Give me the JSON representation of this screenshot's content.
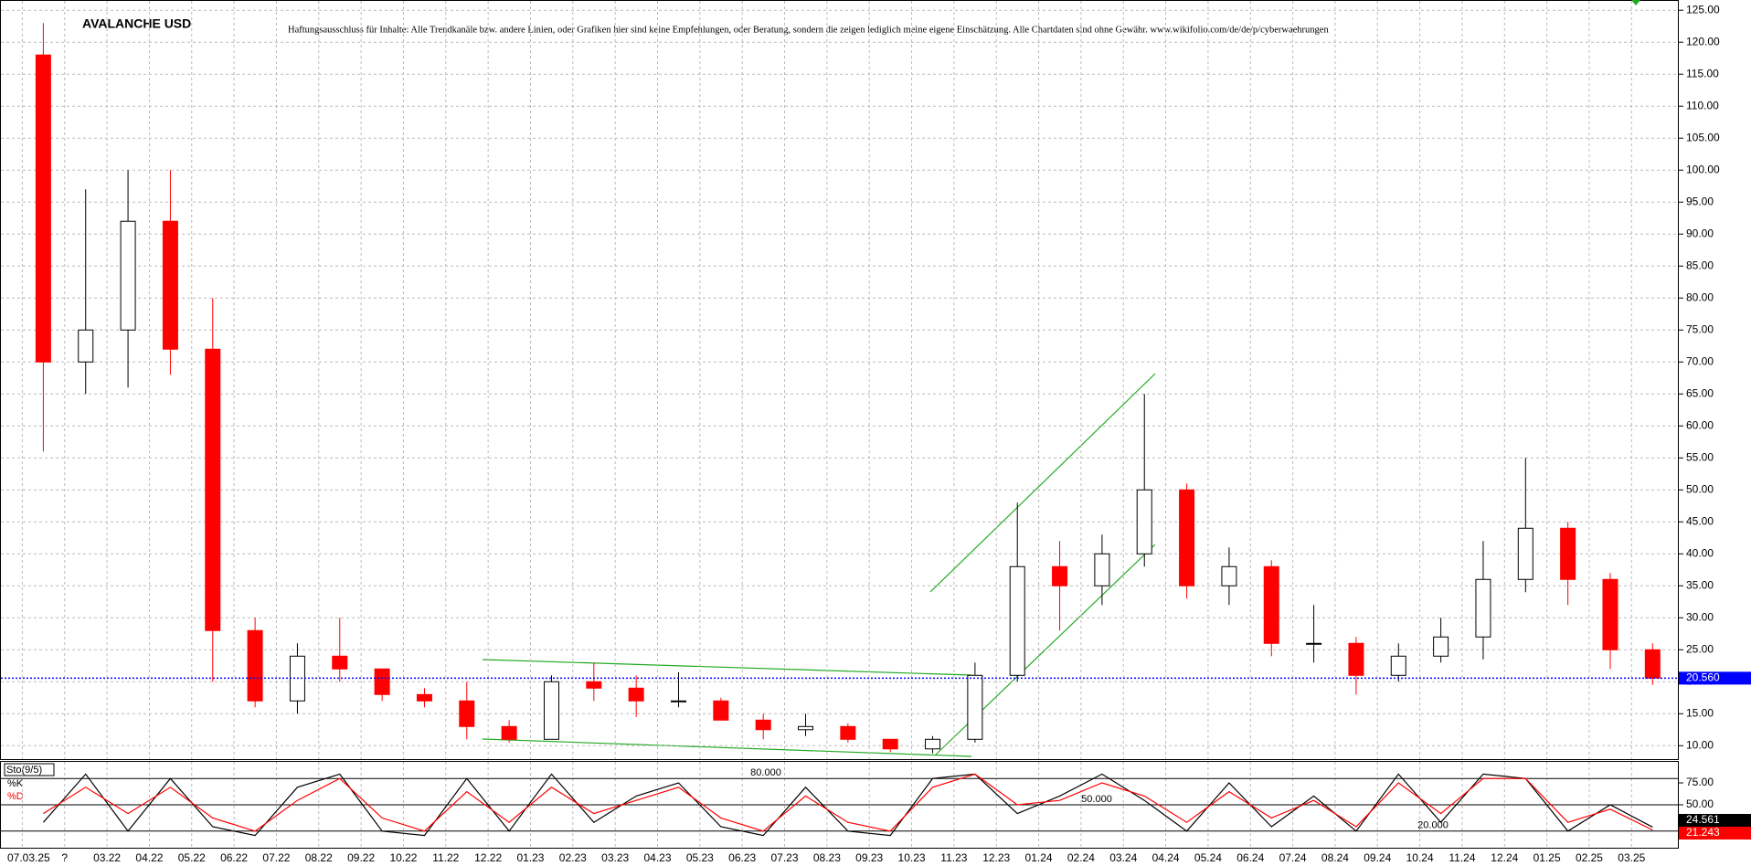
{
  "chart_data": [
    {
      "type": "candlestick",
      "title": "AVALANCHE USD",
      "subtitle": "Haftungsausschluss für Inhalte: Alle Trendkanäle bzw. andere Linien, oder Grafiken hier sind keine Empfehlungen, oder Beratung, sondern die zeigen lediglich meine eigene Einschätzung. Alle Chartdaten sind ohne Gewähr.  www.wikifolio.com/de/de/p/cyberwaehrungen",
      "categories": [
        "07.03.25",
        "?",
        "03.22",
        "04.22",
        "05.22",
        "06.22",
        "07.22",
        "08.22",
        "09.22",
        "10.22",
        "11.22",
        "12.22",
        "01.23",
        "02.23",
        "03.23",
        "04.23",
        "05.23",
        "06.23",
        "07.23",
        "08.23",
        "09.23",
        "10.23",
        "11.23",
        "12.23",
        "01.24",
        "02.24",
        "03.24",
        "04.24",
        "05.24",
        "06.24",
        "07.24",
        "08.24",
        "09.24",
        "10.24",
        "11.24",
        "12.24",
        "01.25",
        "02.25",
        "03.25"
      ],
      "ohlc": [
        [
          118,
          123,
          56,
          70
        ],
        [
          70,
          97,
          65,
          75
        ],
        [
          75,
          100,
          66,
          92
        ],
        [
          92,
          100,
          68,
          72
        ],
        [
          72,
          80,
          20,
          28
        ],
        [
          28,
          30,
          16,
          17
        ],
        [
          17,
          26,
          15,
          24
        ],
        [
          24,
          30,
          20,
          22
        ],
        [
          22,
          22,
          17,
          18
        ],
        [
          18,
          19,
          16,
          17
        ],
        [
          17,
          20,
          11,
          13
        ],
        [
          13,
          14,
          10.5,
          11
        ],
        [
          11,
          21,
          11,
          20
        ],
        [
          20,
          23,
          17,
          19
        ],
        [
          19,
          21,
          14.5,
          17
        ],
        [
          17,
          21.5,
          16,
          17
        ],
        [
          17,
          17.5,
          14,
          14
        ],
        [
          14,
          15,
          11,
          12.5
        ],
        [
          12.5,
          15,
          11.5,
          13
        ],
        [
          13,
          13.5,
          10.5,
          11
        ],
        [
          11,
          11,
          9,
          9.5
        ],
        [
          9.5,
          11.5,
          8.8,
          11
        ],
        [
          11,
          23,
          10.5,
          21
        ],
        [
          21,
          48,
          20,
          38
        ],
        [
          38,
          42,
          28,
          35
        ],
        [
          35,
          43,
          32,
          40
        ],
        [
          40,
          65,
          38,
          50
        ],
        [
          50,
          51,
          33,
          35
        ],
        [
          35,
          41,
          32,
          38
        ],
        [
          38,
          39,
          24,
          26
        ],
        [
          26,
          32,
          23,
          26
        ],
        [
          26,
          27,
          18,
          21
        ],
        [
          21,
          26,
          20,
          24
        ],
        [
          24,
          30,
          23,
          27
        ],
        [
          27,
          42,
          23.5,
          36
        ],
        [
          36,
          55,
          34,
          44
        ],
        [
          44,
          45,
          32,
          36
        ],
        [
          36,
          37,
          22,
          25
        ],
        [
          25,
          26,
          19.5,
          20.56
        ]
      ],
      "up_color": "#000000",
      "down_color": "#ff0000",
      "last": {
        "value": 20.56,
        "label": "20.560",
        "color": "#0000ff"
      },
      "ylim": [
        7.9,
        126.6
      ],
      "yticks": [
        {
          "value": 10,
          "label": "10.00"
        },
        {
          "value": 15,
          "label": "15.00"
        },
        {
          "value": 20,
          "label": "20.00"
        },
        {
          "value": 25,
          "label": "25.00"
        },
        {
          "value": 30,
          "label": "30.00"
        },
        {
          "value": 35,
          "label": "35.00"
        },
        {
          "value": 40,
          "label": "40.00"
        },
        {
          "value": 45,
          "label": "45.00"
        },
        {
          "value": 50,
          "label": "50.00"
        },
        {
          "value": 55,
          "label": "55.00"
        },
        {
          "value": 60,
          "label": "60.00"
        },
        {
          "value": 65,
          "label": "65.00"
        },
        {
          "value": 70,
          "label": "70.00"
        },
        {
          "value": 75,
          "label": "75.00"
        },
        {
          "value": 80,
          "label": "80.00"
        },
        {
          "value": 85,
          "label": "85.00"
        },
        {
          "value": 90,
          "label": "90.00"
        },
        {
          "value": 95,
          "label": "95.00"
        },
        {
          "value": 100,
          "label": "100.00"
        },
        {
          "value": 105,
          "label": "105.00"
        },
        {
          "value": 110,
          "label": "110.00"
        },
        {
          "value": 115,
          "label": "115.00"
        },
        {
          "value": 120,
          "label": "120.00"
        },
        {
          "value": 125,
          "label": "125.00"
        }
      ],
      "grid": true
    },
    {
      "type": "line",
      "title": "Sto(9/5)",
      "series": [
        {
          "name": "%K",
          "color": "#000000",
          "last_label": "24.561",
          "values": [
            30,
            85,
            20,
            80,
            25,
            15,
            70,
            85,
            20,
            15,
            80,
            20,
            85,
            30,
            60,
            75,
            25,
            15,
            70,
            20,
            15,
            80,
            85,
            40,
            60,
            85,
            55,
            20,
            75,
            25,
            60,
            20,
            85,
            30,
            85,
            80,
            20,
            50,
            24.561
          ]
        },
        {
          "name": "%D",
          "color": "#ff0000",
          "last_label": "21.243",
          "values": [
            40,
            70,
            40,
            70,
            35,
            20,
            55,
            80,
            35,
            20,
            65,
            30,
            70,
            40,
            55,
            70,
            35,
            20,
            60,
            30,
            20,
            70,
            85,
            50,
            55,
            75,
            60,
            30,
            65,
            35,
            55,
            25,
            75,
            40,
            80,
            80,
            30,
            45,
            21.243
          ]
        }
      ],
      "levels": [
        {
          "value": 80,
          "label": "80.000"
        },
        {
          "value": 50,
          "label": "50.000"
        },
        {
          "value": 20,
          "label": "20.000"
        }
      ],
      "ylim": [
        0,
        100
      ],
      "yticks": [
        {
          "value": 25,
          "label": "25.00"
        },
        {
          "value": 50,
          "label": "50.00"
        },
        {
          "value": 75,
          "label": "75.00"
        }
      ]
    }
  ]
}
